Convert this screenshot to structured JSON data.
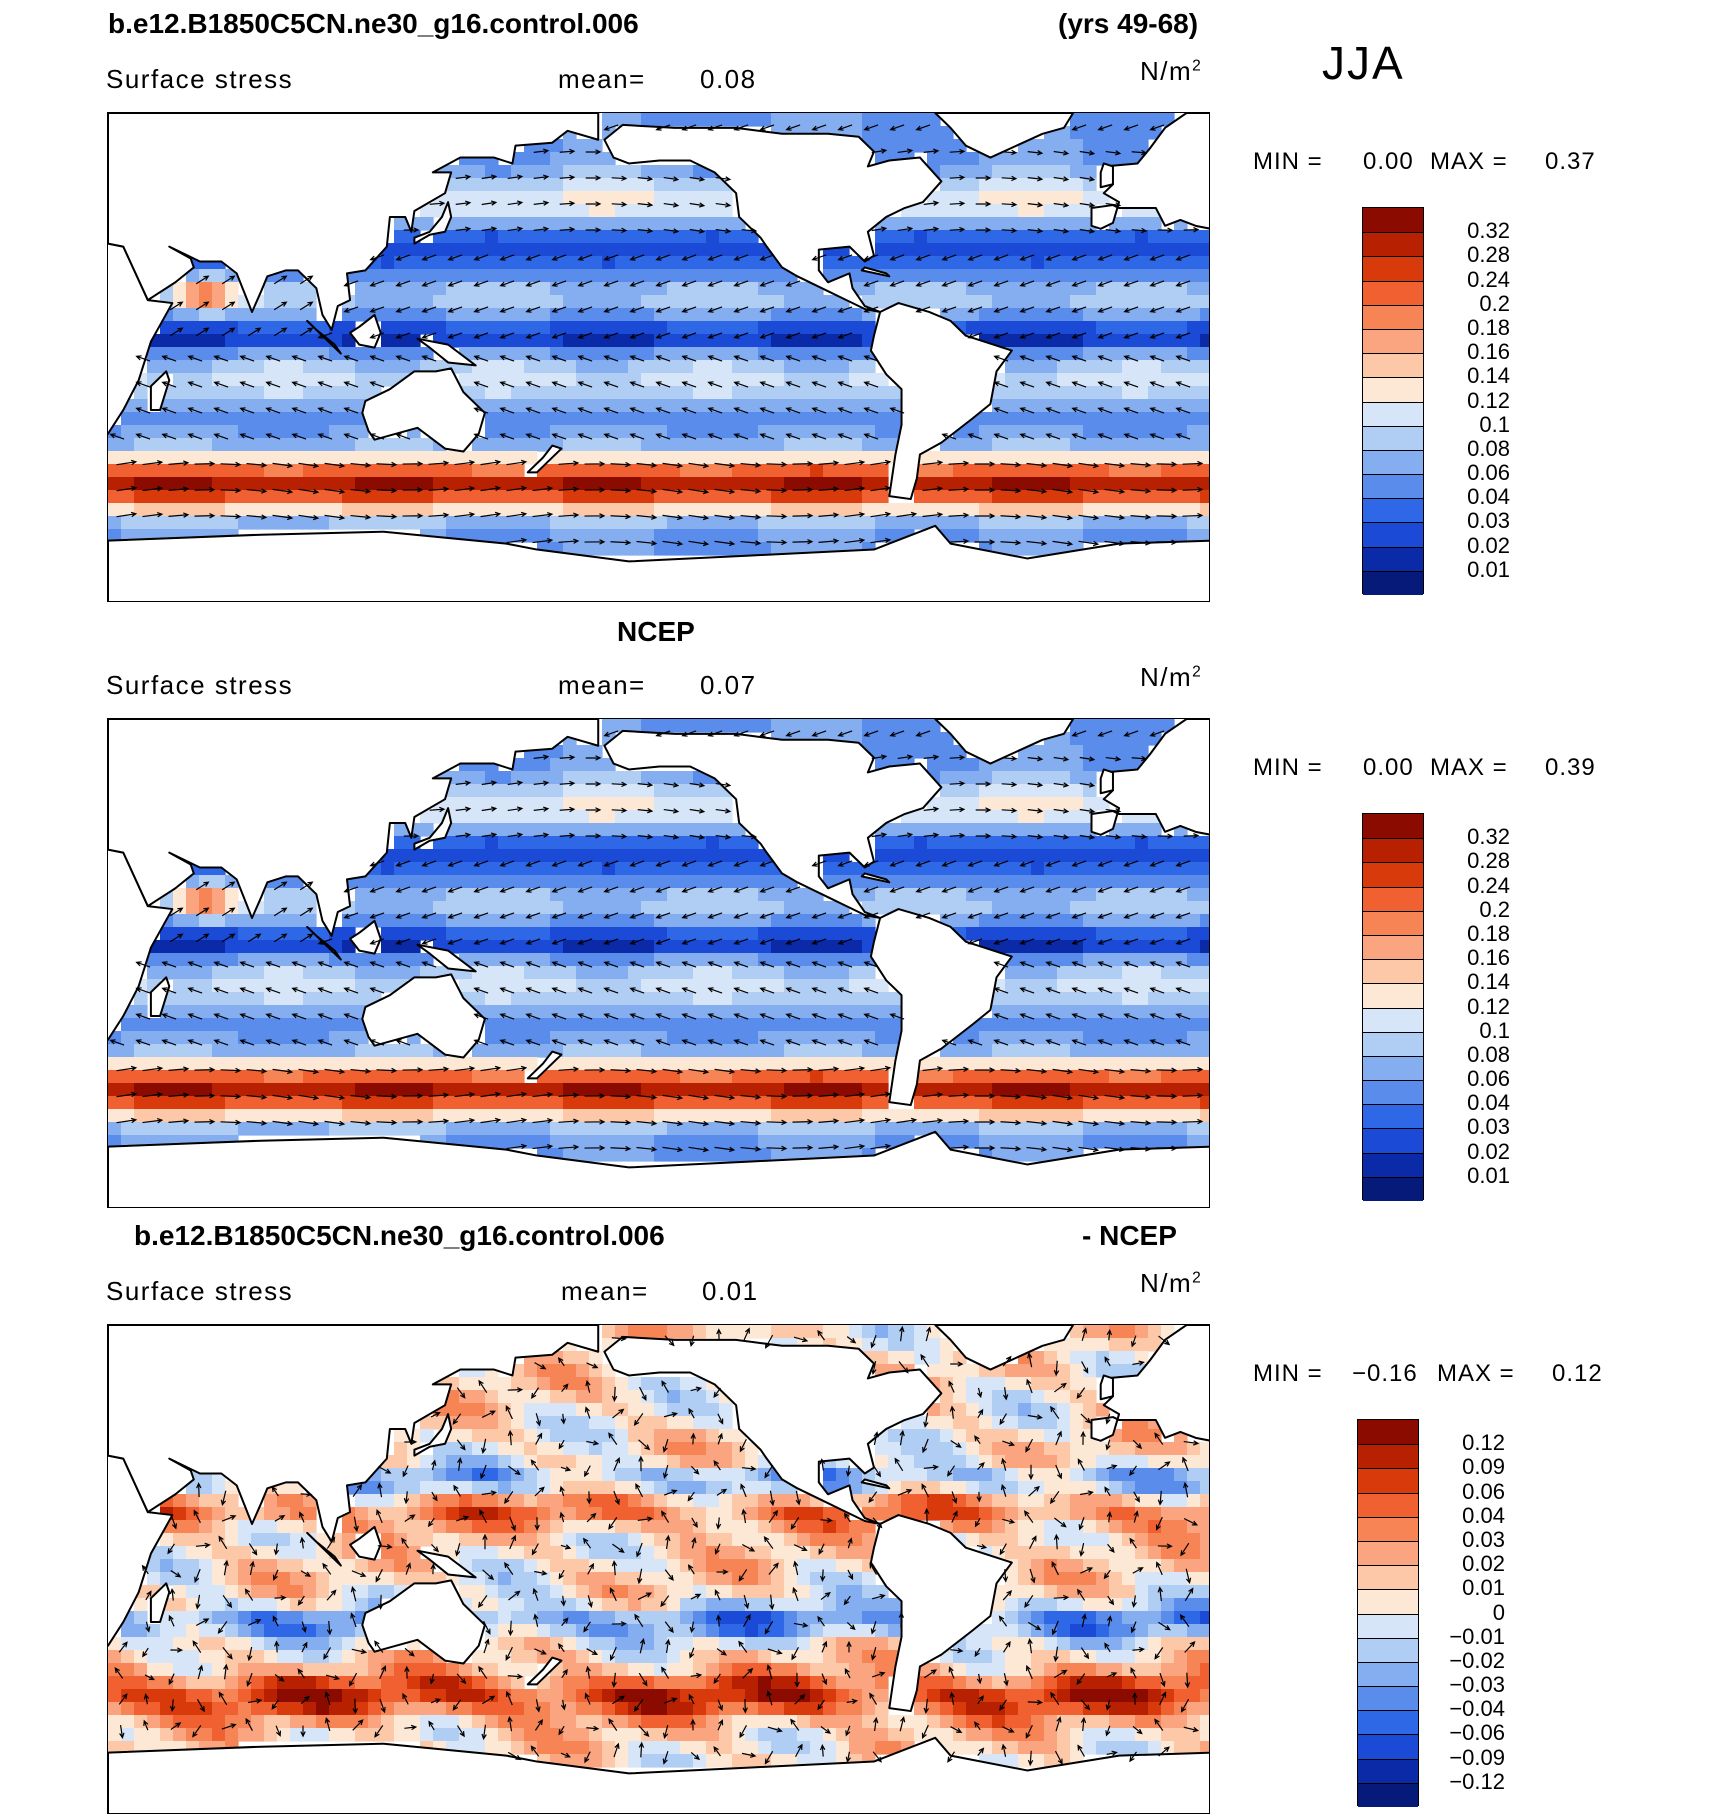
{
  "top_title_left": "b.e12.B1850C5CN.ne30_g16.control.006",
  "top_title_right": "(yrs 49-68)",
  "season": "JJA",
  "panels": [
    {
      "id": "model",
      "header_left": "",
      "header_right": "",
      "variable": "Surface stress",
      "mean_label": "mean=",
      "mean_value": "0.08",
      "units_base": "N/m",
      "units_exp": "2",
      "min_label": "MIN =",
      "min_value": "0.00",
      "max_label": "MAX =",
      "max_value": "0.37",
      "colorbar_ticks": [
        "0.32",
        "0.28",
        "0.24",
        "0.2",
        "0.18",
        "0.16",
        "0.14",
        "0.12",
        "0.1",
        "0.08",
        "0.06",
        "0.04",
        "0.03",
        "0.02",
        "0.01"
      ],
      "style": "magnitude"
    },
    {
      "id": "obs",
      "header_center": "NCEP",
      "variable": "Surface stress",
      "mean_label": "mean=",
      "mean_value": "0.07",
      "units_base": "N/m",
      "units_exp": "2",
      "min_label": "MIN =",
      "min_value": "0.00",
      "max_label": "MAX =",
      "max_value": "0.39",
      "colorbar_ticks": [
        "0.32",
        "0.28",
        "0.24",
        "0.2",
        "0.18",
        "0.16",
        "0.14",
        "0.12",
        "0.1",
        "0.08",
        "0.06",
        "0.04",
        "0.03",
        "0.02",
        "0.01"
      ],
      "style": "magnitude"
    },
    {
      "id": "diff",
      "header_left": "b.e12.B1850C5CN.ne30_g16.control.006",
      "header_right": "- NCEP",
      "variable": "Surface stress",
      "mean_label": "mean=",
      "mean_value": "0.01",
      "units_base": "N/m",
      "units_exp": "2",
      "min_label": "MIN =",
      "min_value": "−0.16",
      "max_label": "MAX =",
      "max_value": "0.12",
      "colorbar_ticks": [
        "0.12",
        "0.09",
        "0.06",
        "0.04",
        "0.03",
        "0.02",
        "0.01",
        "0",
        "−0.01",
        "−0.02",
        "−0.03",
        "−0.04",
        "−0.06",
        "−0.09",
        "−0.12"
      ],
      "style": "difference"
    }
  ],
  "colors": {
    "magnitude_colorbar": [
      "#8b0b00",
      "#b72000",
      "#d93a0c",
      "#f06030",
      "#f78455",
      "#fba480",
      "#fcc8a8",
      "#fde8d6",
      "#d6e6f8",
      "#b0cdf3",
      "#85aef0",
      "#5a8cec",
      "#2f68e6",
      "#1a4ad6",
      "#0a2aa8",
      "#061a7a"
    ],
    "difference_colorbar": [
      "#8b0b00",
      "#b72000",
      "#d93a0c",
      "#f06030",
      "#f78455",
      "#fba480",
      "#fcc8a8",
      "#fde8d6",
      "#d6e6f8",
      "#b0cdf3",
      "#85aef0",
      "#5a8cec",
      "#2f68e6",
      "#1a4ad6",
      "#0a2aa8",
      "#061a7a"
    ],
    "land": "#ffffff",
    "coast": "#000000"
  }
}
